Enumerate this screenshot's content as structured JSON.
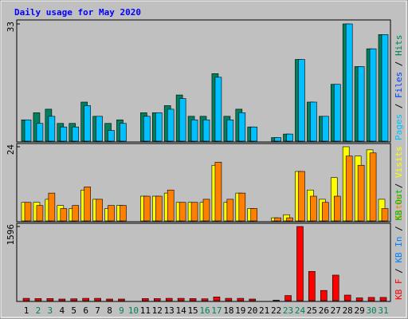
{
  "chart_data": {
    "type": "bar",
    "title": "Daily usage for May 2020",
    "separator": " / ",
    "categories": [
      "1",
      "2",
      "3",
      "4",
      "5",
      "6",
      "7",
      "8",
      "9",
      "10",
      "11",
      "12",
      "13",
      "14",
      "15",
      "16",
      "17",
      "18",
      "19",
      "20",
      "21",
      "22",
      "23",
      "24",
      "25",
      "26",
      "27",
      "28",
      "29",
      "30",
      "31"
    ],
    "category_colors": [
      "#000000",
      "#00805c",
      "#00805c",
      "#000000",
      "#000000",
      "#000000",
      "#000000",
      "#000000",
      "#00805c",
      "#00805c",
      "#000000",
      "#000000",
      "#000000",
      "#000000",
      "#000000",
      "#00805c",
      "#00805c",
      "#000000",
      "#000000",
      "#000000",
      "#000000",
      "#000000",
      "#00805c",
      "#00805c",
      "#000000",
      "#000000",
      "#000000",
      "#000000",
      "#000000",
      "#00805c",
      "#00805c"
    ],
    "panels": [
      {
        "ylim": [
          0,
          33
        ],
        "yticks": [
          33
        ],
        "series": [
          {
            "name": "Pages",
            "color": "#00c0ff",
            "values": [
              6,
              5,
              7,
              4,
              4,
              10,
              7,
              3,
              5,
              0,
              7,
              8,
              9,
              12,
              6,
              6,
              18,
              6,
              8,
              4,
              0,
              1,
              2,
              23,
              11,
              7,
              16,
              33,
              21,
              26,
              30
            ]
          },
          {
            "name": "Files",
            "color": "#0040ff"
          },
          {
            "name": "Hits",
            "color": "#00805c",
            "values": [
              6,
              8,
              9,
              5,
              5,
              11,
              7,
              5,
              6,
              0,
              8,
              8,
              10,
              13,
              7,
              7,
              19,
              7,
              9,
              4,
              0,
              1,
              2,
              23,
              11,
              7,
              16,
              33,
              21,
              26,
              30
            ]
          }
        ]
      },
      {
        "ylim": [
          0,
          24
        ],
        "yticks": [
          24
        ],
        "series": [
          {
            "name": "Sites",
            "color": "#ff8000",
            "values": [
              6,
              5,
              9,
              4,
              5,
              11,
              7,
              5,
              5,
              0,
              8,
              8,
              10,
              6,
              6,
              7,
              19,
              7,
              9,
              4,
              0,
              1,
              1,
              16,
              8,
              6,
              8,
              21,
              18,
              22,
              4
            ]
          },
          {
            "name": "Visits",
            "color": "#ffff00",
            "values": [
              6,
              6,
              7,
              5,
              4,
              10,
              7,
              4,
              5,
              0,
              8,
              8,
              9,
              6,
              6,
              6,
              18,
              6,
              9,
              4,
              0,
              1,
              2,
              16,
              10,
              7,
              14,
              24,
              21,
              23,
              7
            ]
          }
        ]
      },
      {
        "ylim": [
          0,
          1596
        ],
        "yticks": [
          1596
        ],
        "series": [
          {
            "name": "KB F",
            "color": "#ff0000",
            "values": [
              50,
              45,
              45,
              35,
              40,
              50,
              50,
              35,
              35,
              0,
              45,
              45,
              50,
              50,
              45,
              40,
              80,
              50,
              50,
              35,
              0,
              10,
              110,
              1596,
              630,
              220,
              550,
              120,
              60,
              70,
              70
            ]
          },
          {
            "name": "KB In",
            "color": "#0080ff"
          },
          {
            "name": "KB Out",
            "color": "#00c000"
          }
        ]
      }
    ]
  }
}
